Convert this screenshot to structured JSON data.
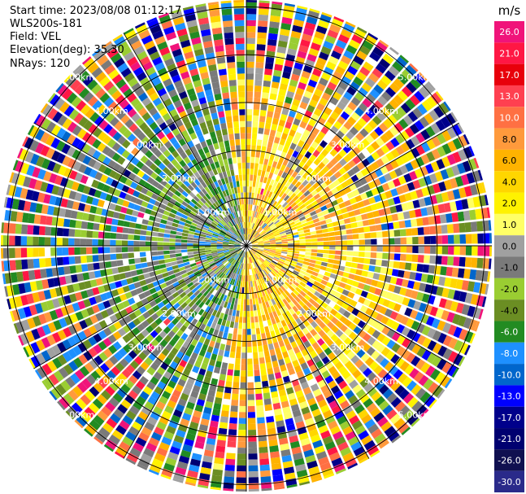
{
  "header": {
    "start_time": "Start time: 2023/08/08 01:12:17",
    "instrument": "WLS200s-181",
    "field": "Field: VEL",
    "elevation": "Elevation(deg): 35.30",
    "nrays": "NRays: 120"
  },
  "chart_data": {
    "type": "heatmap",
    "subtype": "ppi-polar",
    "field": "VEL",
    "units": "m/s",
    "n_rays": 120,
    "elevation_deg": 35.3,
    "range_ring_labels": [
      "1.00km",
      "2.00km",
      "3.00km",
      "4.00km",
      "5.00km"
    ],
    "range_rings_km": [
      1,
      2,
      3,
      4,
      5
    ],
    "spokes_deg": [
      0,
      30,
      60,
      90,
      120,
      150,
      180,
      210,
      240,
      270,
      300,
      330
    ],
    "colorbar": {
      "title": "m/s",
      "ticks": [
        "26.0",
        "21.0",
        "17.0",
        "13.0",
        "10.0",
        "8.0",
        "6.0",
        "4.0",
        "2.0",
        "1.0",
        "0.0",
        "-1.0",
        "-2.0",
        "-4.0",
        "-6.0",
        "-8.0",
        "-10.0",
        "-13.0",
        "-17.0",
        "-21.0",
        "-26.0",
        "-30.0"
      ],
      "colors": [
        "#f0147a",
        "#ff1744",
        "#e8000b",
        "#ff4050",
        "#ff7043",
        "#ff9a3c",
        "#ffb300",
        "#ffd600",
        "#fff200",
        "#ffff66",
        "#a0a0a0",
        "#7a7a7a",
        "#9acd32",
        "#6b8e23",
        "#228b22",
        "#1e90ff",
        "#0066cc",
        "#0000ff",
        "#00008b",
        "#000070",
        "#101050",
        "#2a2a8a"
      ]
    },
    "pattern_description": "near-range (<3 km): yellow/orange positive velocities to east/northeast, greens/blues (negative) to west/southwest, gray near-zero patches; beyond ~3.5 km noisy mixed colors"
  }
}
